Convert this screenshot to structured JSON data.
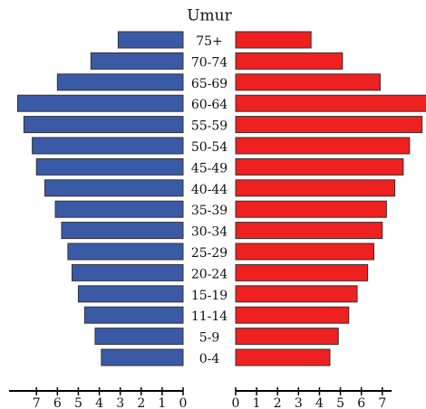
{
  "chart_data": {
    "type": "pyramid",
    "title": "Umur",
    "categories": [
      "75+",
      "70-74",
      "65-69",
      "60-64",
      "55-59",
      "50-54",
      "45-49",
      "40-44",
      "35-39",
      "30-34",
      "25-29",
      "20-24",
      "15-19",
      "11-14",
      "5-9",
      "0-4"
    ],
    "series": [
      {
        "color": "#3b5aa6",
        "side": "left",
        "values": [
          3.1,
          4.4,
          6.0,
          7.9,
          7.6,
          7.2,
          7.0,
          6.6,
          6.1,
          5.8,
          5.5,
          5.3,
          5.0,
          4.7,
          4.2,
          3.9
        ]
      },
      {
        "color": "#ee2020",
        "side": "right",
        "values": [
          3.6,
          5.1,
          6.9,
          9.2,
          8.9,
          8.3,
          8.0,
          7.6,
          7.2,
          7.0,
          6.6,
          6.3,
          5.8,
          5.4,
          4.9,
          4.5
        ]
      }
    ],
    "xlim": [
      0,
      9
    ],
    "xticks": [
      0,
      1,
      2,
      3,
      4,
      5,
      6,
      7
    ]
  }
}
